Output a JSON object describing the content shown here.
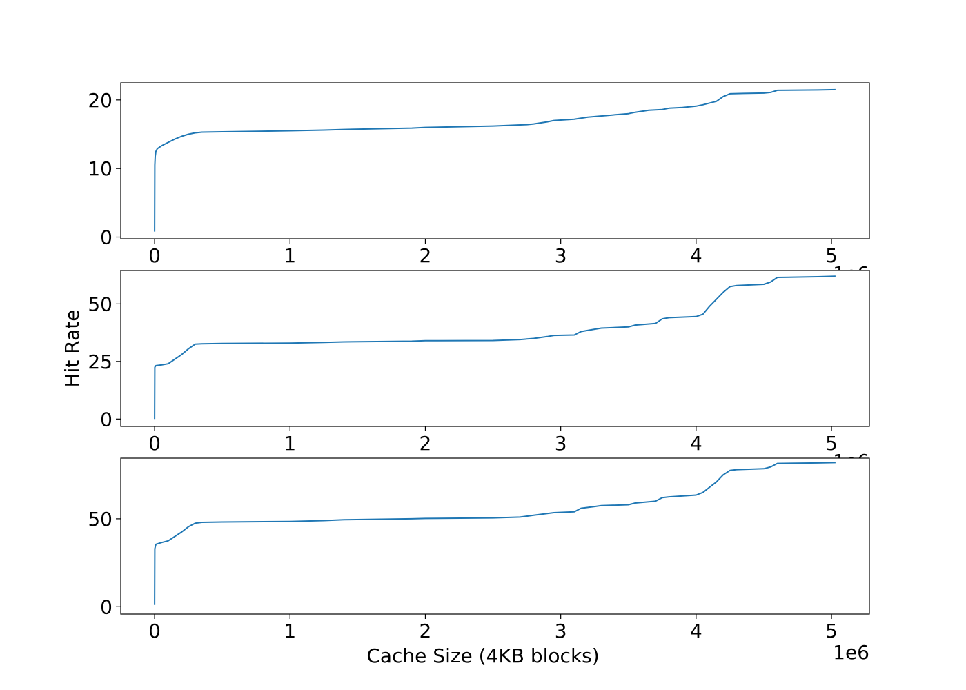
{
  "figure": {
    "xlabel": "Cache Size (4KB blocks)",
    "ylabel": "Hit Rate",
    "x_offset_text": "1e6"
  },
  "chart_data": [
    {
      "type": "line",
      "xlim": [
        -0.25,
        5.28
      ],
      "ylim": [
        -0.25,
        22.5
      ],
      "xticks": [
        0,
        1,
        2,
        3,
        4,
        5
      ],
      "yticks": [
        0,
        10,
        20
      ],
      "x_offset_text": "1e6",
      "line_color": "#1f77b4",
      "series": [
        {
          "x": [
            0,
            0.002,
            0.005,
            0.01,
            0.02,
            0.05,
            0.1,
            0.15,
            0.2,
            0.25,
            0.3,
            0.35,
            0.5,
            1.0,
            1.25,
            1.4,
            1.9,
            2.0,
            2.5,
            2.75,
            2.8,
            2.9,
            2.95,
            3.1,
            3.2,
            3.5,
            3.55,
            3.65,
            3.75,
            3.8,
            3.9,
            4.0,
            4.05,
            4.15,
            4.2,
            4.25,
            4.35,
            4.5,
            4.55,
            4.6,
            4.9,
            5.03
          ],
          "y": [
            0.8,
            10.5,
            11.8,
            12.5,
            12.9,
            13.3,
            13.8,
            14.3,
            14.7,
            15.0,
            15.2,
            15.3,
            15.35,
            15.5,
            15.6,
            15.7,
            15.9,
            16.0,
            16.2,
            16.4,
            16.5,
            16.8,
            17.0,
            17.2,
            17.5,
            18.0,
            18.2,
            18.5,
            18.6,
            18.8,
            18.9,
            19.1,
            19.3,
            19.8,
            20.5,
            20.9,
            20.95,
            21.0,
            21.1,
            21.4,
            21.45,
            21.5
          ]
        }
      ]
    },
    {
      "type": "line",
      "xlim": [
        -0.25,
        5.28
      ],
      "ylim": [
        -3.2,
        64.5
      ],
      "xticks": [
        0,
        1,
        2,
        3,
        4,
        5
      ],
      "yticks": [
        0,
        25,
        50
      ],
      "x_offset_text": "1e6",
      "line_color": "#1f77b4",
      "series": [
        {
          "x": [
            0,
            0.002,
            0.01,
            0.05,
            0.1,
            0.15,
            0.2,
            0.25,
            0.3,
            0.35,
            0.5,
            1.0,
            1.25,
            1.4,
            1.9,
            2.0,
            2.5,
            2.7,
            2.8,
            2.9,
            2.95,
            3.1,
            3.15,
            3.25,
            3.3,
            3.5,
            3.55,
            3.7,
            3.75,
            3.8,
            4.0,
            4.05,
            4.1,
            4.15,
            4.2,
            4.25,
            4.3,
            4.5,
            4.55,
            4.6,
            4.9,
            5.03
          ],
          "y": [
            0,
            22.5,
            23.2,
            23.5,
            24.0,
            26.0,
            28.0,
            30.5,
            32.5,
            32.7,
            32.8,
            33.0,
            33.3,
            33.5,
            33.8,
            34.0,
            34.1,
            34.5,
            35.0,
            35.8,
            36.3,
            36.5,
            38.0,
            39.0,
            39.5,
            40.0,
            40.8,
            41.5,
            43.5,
            44.0,
            44.5,
            45.5,
            49.0,
            52.0,
            55.0,
            57.5,
            58.0,
            58.5,
            59.5,
            61.5,
            61.8,
            62.0
          ]
        }
      ]
    },
    {
      "type": "line",
      "xlim": [
        -0.25,
        5.28
      ],
      "ylim": [
        -4.2,
        84.5
      ],
      "xticks": [
        0,
        1,
        2,
        3,
        4,
        5
      ],
      "yticks": [
        0,
        50
      ],
      "x_offset_text": "1e6",
      "line_color": "#1f77b4",
      "series": [
        {
          "x": [
            0,
            0.002,
            0.01,
            0.05,
            0.1,
            0.15,
            0.2,
            0.25,
            0.3,
            0.35,
            0.5,
            1.0,
            1.25,
            1.4,
            1.9,
            2.0,
            2.5,
            2.7,
            2.8,
            2.9,
            2.95,
            3.1,
            3.15,
            3.25,
            3.3,
            3.5,
            3.55,
            3.7,
            3.75,
            3.8,
            4.0,
            4.05,
            4.1,
            4.15,
            4.2,
            4.25,
            4.3,
            4.5,
            4.55,
            4.6,
            4.9,
            5.03
          ],
          "y": [
            1,
            33.0,
            35.5,
            36.5,
            37.5,
            40.0,
            42.5,
            45.5,
            47.5,
            48.0,
            48.2,
            48.5,
            49.0,
            49.5,
            50.0,
            50.2,
            50.5,
            51.0,
            52.0,
            53.0,
            53.5,
            54.0,
            56.0,
            57.0,
            57.5,
            58.0,
            59.0,
            60.0,
            62.0,
            62.5,
            63.5,
            65.0,
            68.0,
            71.0,
            75.0,
            77.5,
            78.0,
            78.5,
            79.5,
            81.5,
            81.8,
            82.0
          ]
        }
      ]
    }
  ]
}
